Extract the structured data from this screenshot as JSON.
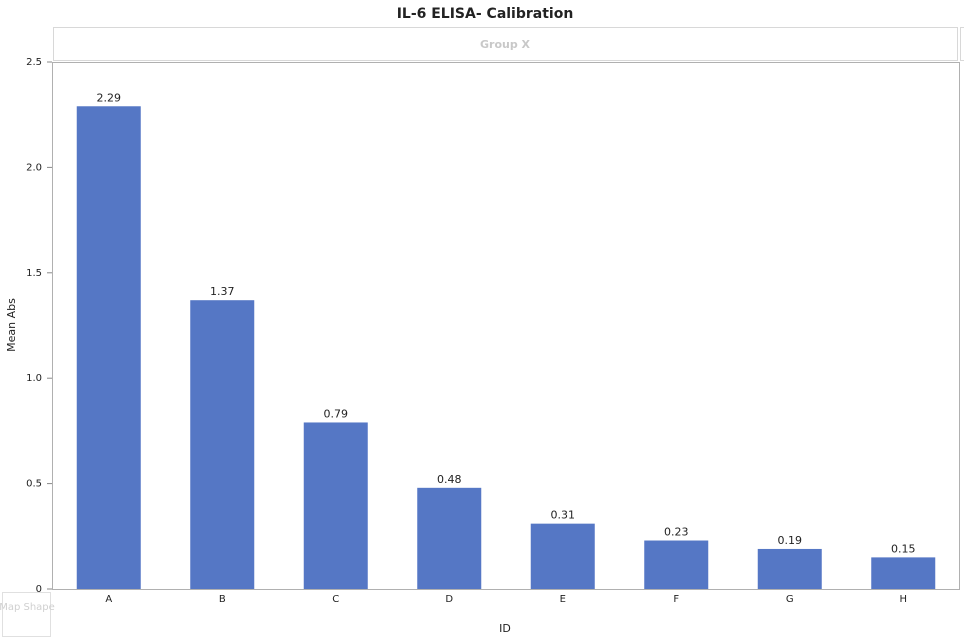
{
  "chart_data": {
    "type": "bar",
    "title": "IL-6 ELISA-  Calibration",
    "group_label": "Group X",
    "map_shape_label": "Map Shape",
    "x_label": "ID",
    "y_label": "Mean Abs",
    "categories": [
      "A",
      "B",
      "C",
      "D",
      "E",
      "F",
      "G",
      "H"
    ],
    "values": [
      2.29,
      1.37,
      0.79,
      0.48,
      0.31,
      0.23,
      0.19,
      0.15
    ],
    "color": "#5577c5",
    "ylim": [
      0,
      2.5
    ],
    "yticks": [
      0,
      0.5,
      {
        "value": 1,
        "label": "1.0"
      },
      1.5,
      {
        "value": 2,
        "label": "2.0"
      },
      2.5
    ],
    "grid": false
  }
}
